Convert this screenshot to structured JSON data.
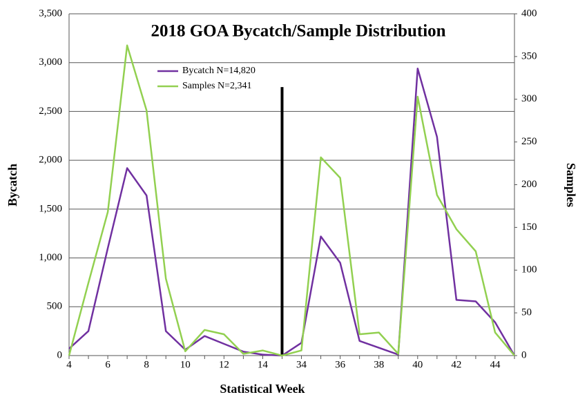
{
  "chart_data": {
    "type": "line",
    "title": "2018 GOA Bycatch/Sample Distribution",
    "x_label": "Statistical Week",
    "y_label": "Bycatch",
    "y2_label": "Samples",
    "categories": [
      "4",
      null,
      "6",
      null,
      "8",
      null,
      "10",
      null,
      "12",
      null,
      "14",
      null,
      "34",
      null,
      "36",
      null,
      "38",
      null,
      "40",
      null,
      "42",
      null,
      "44",
      null
    ],
    "series": [
      {
        "name": "Bycatch N=14,820",
        "color": "#7030a0",
        "axis": "y",
        "values": [
          70,
          250,
          1100,
          1920,
          1640,
          250,
          60,
          200,
          120,
          40,
          10,
          0,
          130,
          1220,
          950,
          150,
          80,
          10,
          2940,
          2240,
          570,
          555,
          340,
          0
        ]
      },
      {
        "name": "Samples N=2,341",
        "color": "#92d050",
        "axis": "y2",
        "values": [
          0,
          85,
          168,
          363,
          287,
          90,
          5,
          30,
          25,
          2,
          6,
          0,
          6,
          232,
          208,
          25,
          27,
          2,
          303,
          188,
          148,
          122,
          27,
          0
        ]
      }
    ],
    "vline": {
      "at": 11,
      "top": 2750,
      "color": "#000000"
    },
    "ylim": [
      0,
      3500
    ],
    "yticks": [
      0,
      500,
      {
        "value": 1000,
        "label": "1,000"
      },
      {
        "value": 1500,
        "label": "1,500"
      },
      {
        "value": 2000,
        "label": "2,000"
      },
      {
        "value": 2500,
        "label": "2,500"
      },
      {
        "value": 3000,
        "label": "3,000"
      },
      {
        "value": 3500,
        "label": "3,500"
      }
    ],
    "y2lim": [
      0,
      400
    ],
    "y2ticks": [
      0,
      50,
      100,
      150,
      200,
      250,
      300,
      350,
      400
    ],
    "grid": true
  }
}
